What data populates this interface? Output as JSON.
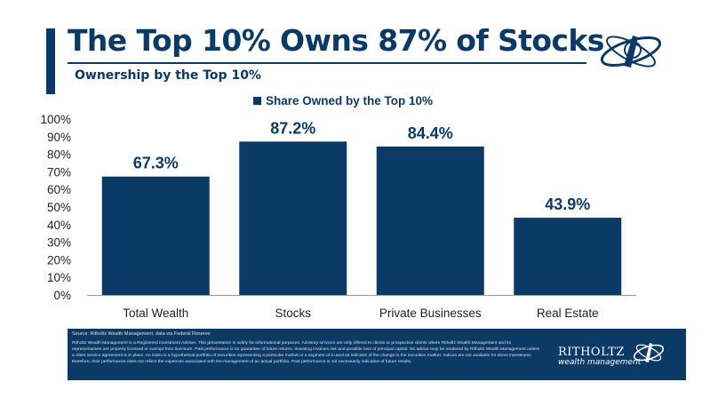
{
  "header": {
    "title": "The Top 10% Owns 87% of Stocks",
    "subtitle": "Ownership by the Top 10%"
  },
  "logo": {
    "icon": "ritholtz-logo-icon"
  },
  "colors": {
    "brand_navy": "#0b3a67",
    "bar": "#0b3a67",
    "text": "#222222"
  },
  "chart_data": {
    "type": "bar",
    "title": "",
    "categories": [
      "Total Wealth",
      "Stocks",
      "Private Businesses",
      "Real Estate"
    ],
    "series": [
      {
        "name": "Share Owned by the Top 10%",
        "values": [
          67.3,
          87.2,
          84.4,
          43.9
        ]
      }
    ],
    "data_labels": [
      "67.3%",
      "87.2%",
      "84.4%",
      "43.9%"
    ],
    "y_ticks": [
      "0%",
      "10%",
      "20%",
      "30%",
      "40%",
      "50%",
      "60%",
      "70%",
      "80%",
      "90%",
      "100%"
    ],
    "ylim": [
      0,
      100
    ],
    "xlabel": "",
    "ylabel": "",
    "grid": false,
    "legend_position": "top-center"
  },
  "footer": {
    "source": "Source: Ritholtz Wealth Management, data via Federal Reserve",
    "disclaimer": "Ritholtz Wealth Management is a Registered Investment Adviser. This presentation is solely for informational purposes. Advisory services are only offered to clients or prospective clients where Ritholtz Wealth Management and its representatives are properly licensed or exempt from licensure. Past performance is no guarantee of future returns. Investing involves risk and possible loss of principal capital. No advice may be rendered by Ritholtz Wealth Management unless a client service agreement is in place. An index is a hypothetical portfolio of securities representing a particular market or a segment of it used as indicator of the change in the securities market. Indices are not available for direct investment; therefore, their performance does not reflect the expenses associated with the management of an actual portfolio. Past performance is not necessarily indicative of future results.",
    "brand_name": "RITHOLTZ",
    "brand_sub": "wealth management"
  }
}
